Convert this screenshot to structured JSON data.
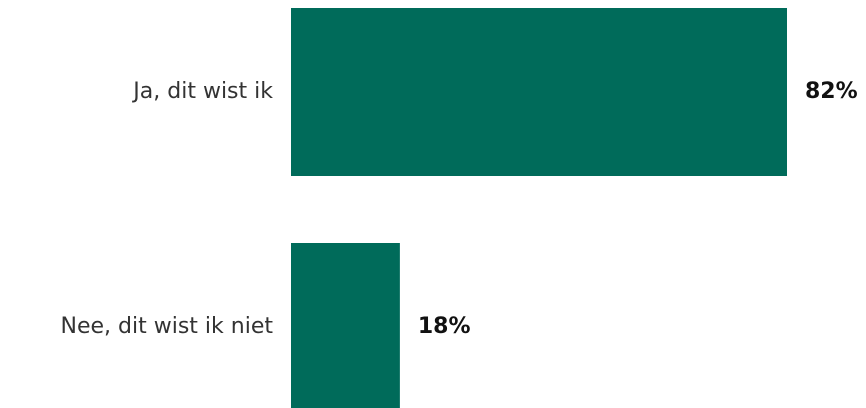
{
  "chart_data": {
    "type": "bar",
    "orientation": "horizontal",
    "categories": [
      "Ja, dit wist ik",
      "Nee, dit wist ik niet"
    ],
    "values": [
      82,
      18
    ],
    "value_labels": [
      "82%",
      "18%"
    ],
    "unit": "%",
    "xlim": [
      0,
      100
    ],
    "grid": false,
    "legend": "none",
    "bar_color": "#006b5a"
  }
}
